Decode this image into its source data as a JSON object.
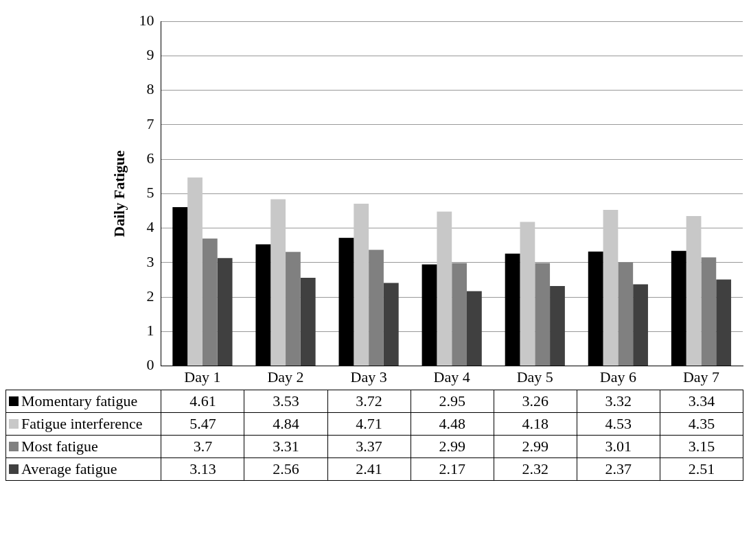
{
  "chart_data": {
    "type": "bar",
    "ylabel": "Daily Fatigue",
    "categories": [
      "Day 1",
      "Day 2",
      "Day 3",
      "Day 4",
      "Day 5",
      "Day 6",
      "Day 7"
    ],
    "series": [
      {
        "name": "Momentary fatigue",
        "color": "#000000",
        "values": [
          4.61,
          3.53,
          3.72,
          2.95,
          3.26,
          3.32,
          3.34
        ]
      },
      {
        "name": "Fatigue interference",
        "color": "#c8c8c8",
        "values": [
          5.47,
          4.84,
          4.71,
          4.48,
          4.18,
          4.53,
          4.35
        ]
      },
      {
        "name": "Most fatigue",
        "color": "#808080",
        "values": [
          3.7,
          3.31,
          3.37,
          2.99,
          2.99,
          3.01,
          3.15
        ]
      },
      {
        "name": "Average fatigue",
        "color": "#404040",
        "values": [
          3.13,
          2.56,
          2.41,
          2.17,
          2.32,
          2.37,
          2.51
        ]
      }
    ],
    "ylim": [
      0,
      10
    ],
    "yticks": [
      0,
      1,
      2,
      3,
      4,
      5,
      6,
      7,
      8,
      9,
      10
    ],
    "grid": "y",
    "legend": "bottom",
    "data_labels": true
  }
}
